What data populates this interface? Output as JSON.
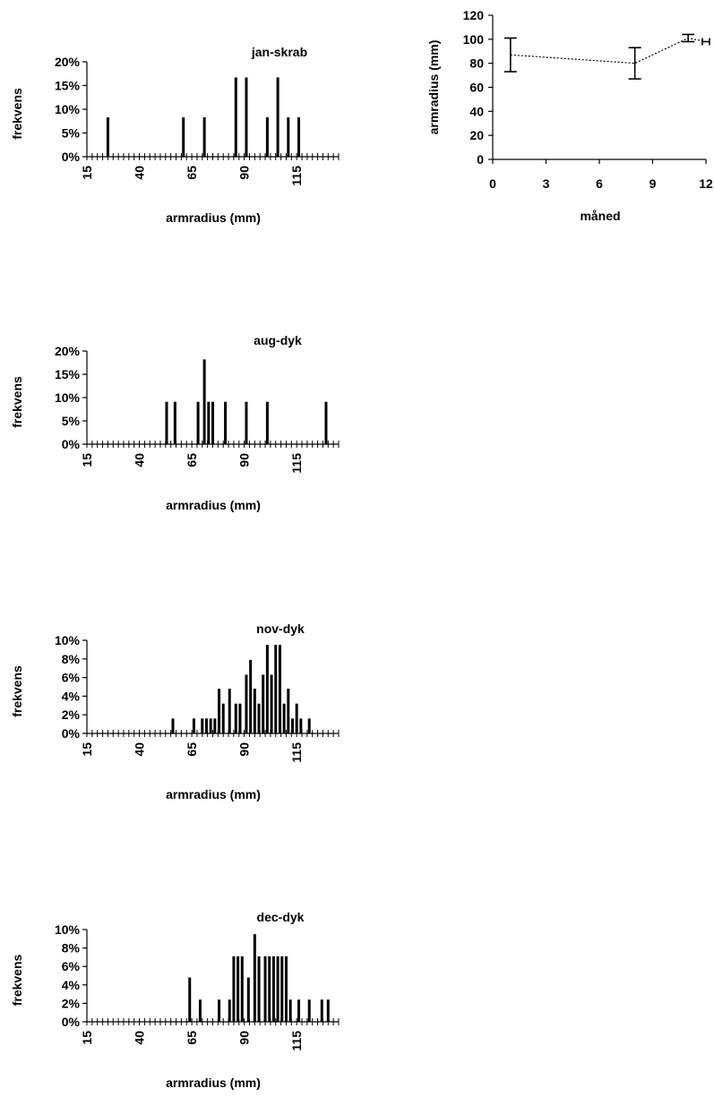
{
  "chart_data": [
    {
      "type": "bar",
      "title": "jan-skrab",
      "xlabel": "armradius (mm)",
      "ylabel": "frekvens",
      "xlim": [
        15,
        135
      ],
      "ylim": [
        0,
        0.2
      ],
      "ytick_labels": [
        "0%",
        "5%",
        "10%",
        "15%",
        "20%"
      ],
      "xtick_labels": [
        "15",
        "40",
        "65",
        "90",
        "115"
      ],
      "x": [
        25,
        61,
        71,
        86,
        91,
        101,
        106,
        111,
        116
      ],
      "values": [
        0.083,
        0.083,
        0.083,
        0.167,
        0.167,
        0.083,
        0.167,
        0.083,
        0.083
      ]
    },
    {
      "type": "bar",
      "title": "aug-dyk",
      "xlabel": "armradius (mm)",
      "ylabel": "frekvens",
      "xlim": [
        15,
        135
      ],
      "ylim": [
        0,
        0.2
      ],
      "ytick_labels": [
        "0%",
        "5%",
        "10%",
        "15%",
        "20%"
      ],
      "xtick_labels": [
        "15",
        "40",
        "65",
        "90",
        "115"
      ],
      "x": [
        53,
        57,
        68,
        71,
        73,
        75,
        81,
        91,
        101,
        129
      ],
      "values": [
        0.091,
        0.091,
        0.091,
        0.182,
        0.091,
        0.091,
        0.091,
        0.091,
        0.091,
        0.091
      ]
    },
    {
      "type": "bar",
      "title": "nov-dyk",
      "xlabel": "armradius (mm)",
      "ylabel": "frekvens",
      "xlim": [
        15,
        135
      ],
      "ylim": [
        0,
        0.1
      ],
      "ytick_labels": [
        "0%",
        "2%",
        "4%",
        "6%",
        "8%",
        "10%"
      ],
      "xtick_labels": [
        "15",
        "40",
        "65",
        "90",
        "115"
      ],
      "x": [
        56,
        66,
        70,
        72,
        74,
        76,
        78,
        80,
        83,
        86,
        88,
        91,
        93,
        95,
        97,
        99,
        101,
        103,
        105,
        107,
        109,
        111,
        113,
        115,
        117,
        121
      ],
      "values": [
        0.016,
        0.016,
        0.016,
        0.016,
        0.016,
        0.016,
        0.048,
        0.032,
        0.048,
        0.032,
        0.032,
        0.063,
        0.079,
        0.048,
        0.032,
        0.063,
        0.095,
        0.063,
        0.095,
        0.095,
        0.032,
        0.048,
        0.016,
        0.032,
        0.016,
        0.016
      ]
    },
    {
      "type": "bar",
      "title": "dec-dyk",
      "xlabel": "armradius (mm)",
      "ylabel": "frekvens",
      "xlim": [
        15,
        135
      ],
      "ylim": [
        0,
        0.1
      ],
      "ytick_labels": [
        "0%",
        "2%",
        "4%",
        "6%",
        "8%",
        "10%"
      ],
      "xtick_labels": [
        "15",
        "40",
        "65",
        "90",
        "115"
      ],
      "x": [
        64,
        69,
        78,
        83,
        85,
        87,
        89,
        92,
        95,
        97,
        100,
        102,
        104,
        106,
        108,
        110,
        112,
        116,
        121,
        127,
        130
      ],
      "values": [
        0.048,
        0.024,
        0.024,
        0.024,
        0.071,
        0.071,
        0.071,
        0.048,
        0.095,
        0.071,
        0.071,
        0.071,
        0.071,
        0.071,
        0.071,
        0.071,
        0.024,
        0.024,
        0.024,
        0.024,
        0.024
      ]
    },
    {
      "type": "scatter",
      "xlabel": "måned",
      "ylabel": "armradius (mm)",
      "xlim": [
        0,
        12
      ],
      "ylim": [
        0,
        120
      ],
      "xtick_labels": [
        "0",
        "3",
        "6",
        "9",
        "12"
      ],
      "ytick_labels": [
        "0",
        "20",
        "40",
        "60",
        "80",
        "100",
        "120"
      ],
      "x": [
        1,
        8,
        11,
        12
      ],
      "values": [
        87,
        80,
        101,
        98
      ],
      "error_low": [
        73,
        67,
        98,
        95
      ],
      "error_high": [
        101,
        93,
        104,
        101
      ]
    }
  ]
}
